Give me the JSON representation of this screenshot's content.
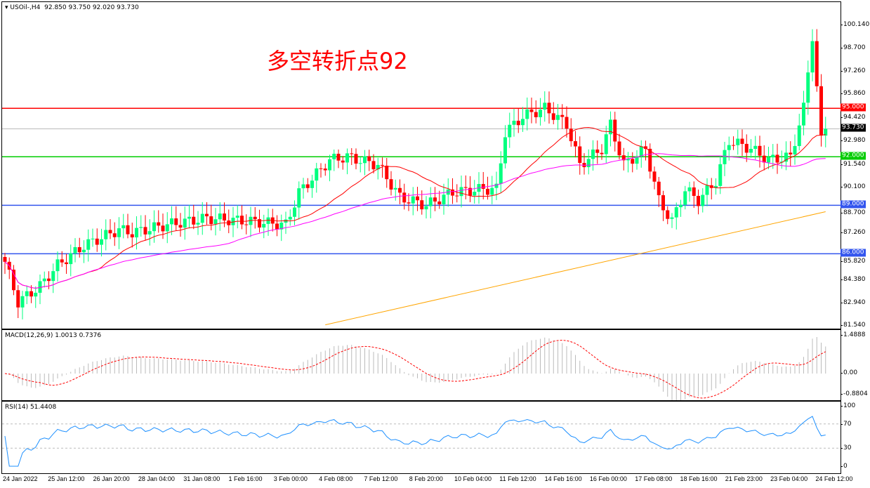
{
  "header": {
    "symbol": "USOil-,H4",
    "ohlc": "92.850 93.750 92.020 93.730"
  },
  "annotation": "多空转折点92",
  "colors": {
    "bull": "#00ff7f",
    "bear": "#ff0000",
    "ma_fast": "#ff0000",
    "ma_mid": "#ff00ff",
    "ma_slow": "#ffa500",
    "res": "#ff0000",
    "sup": "#00cc00",
    "level": "#3355ee"
  },
  "price_axis": {
    "min": 81.54,
    "max": 100.14,
    "ticks": [
      "100.140",
      "98.700",
      "97.260",
      "95.860",
      "94.420",
      "92.980",
      "91.540",
      "90.100",
      "88.700",
      "87.260",
      "85.820",
      "84.380",
      "82.940",
      "81.540"
    ]
  },
  "levels": [
    {
      "value": 95.0,
      "label": "95.000",
      "kind": "res"
    },
    {
      "value": 92.0,
      "label": "92.000",
      "kind": "sup"
    },
    {
      "value": 89.0,
      "label": "89.000",
      "kind": "level"
    },
    {
      "value": 86.0,
      "label": "86.000",
      "kind": "level"
    }
  ],
  "current_price": {
    "value": 93.73,
    "label": "93.730"
  },
  "close_waypoints": [
    [
      0,
      85.5
    ],
    [
      3,
      83
    ],
    [
      8,
      84
    ],
    [
      12,
      85.3
    ],
    [
      18,
      86.5
    ],
    [
      26,
      87.5
    ],
    [
      29,
      87.3
    ],
    [
      37,
      87.8
    ],
    [
      46,
      88.2
    ],
    [
      56,
      88
    ],
    [
      64,
      87.8
    ],
    [
      67,
      89.8
    ],
    [
      74,
      91.8
    ],
    [
      78,
      92
    ],
    [
      85,
      91.5
    ],
    [
      90,
      89.5
    ],
    [
      96,
      89
    ],
    [
      102,
      89.8
    ],
    [
      109,
      90
    ],
    [
      112,
      90
    ],
    [
      114,
      93.5
    ],
    [
      118,
      94.5
    ],
    [
      123,
      95
    ],
    [
      128,
      94
    ],
    [
      131,
      91.5
    ],
    [
      136,
      92.5
    ],
    [
      138,
      94
    ],
    [
      141,
      91.5
    ],
    [
      146,
      92.5
    ],
    [
      149,
      89.3
    ],
    [
      152,
      88
    ],
    [
      155,
      90
    ],
    [
      158,
      89.3
    ],
    [
      162,
      90.5
    ],
    [
      165,
      93
    ],
    [
      170,
      92.5
    ],
    [
      174,
      91.8
    ],
    [
      179,
      92
    ],
    [
      182,
      95
    ],
    [
      184,
      99.5
    ],
    [
      186,
      93
    ],
    [
      187,
      93.73
    ]
  ],
  "ma_slow": {
    "start": 81.6,
    "end": 88.6,
    "start_index": 73
  },
  "macd": {
    "label": "MACD(12,26,9) 1.0013 0.7376",
    "max": 1.4888,
    "min": -0.8804,
    "ticks": [
      "1.4888",
      "0.00",
      "-0.8804"
    ]
  },
  "rsi": {
    "label": "RSI(14) 51.4408",
    "ticks": [
      "100",
      "70",
      "30",
      "0"
    ]
  },
  "time_labels": [
    "24 Jan 2022",
    "25 Jan 12:00",
    "26 Jan 20:00",
    "28 Jan 04:00",
    "31 Jan 08:00",
    "1 Feb 16:00",
    "3 Feb 00:00",
    "4 Feb 08:00",
    "7 Feb 12:00",
    "8 Feb 20:00",
    "10 Feb 04:00",
    "11 Feb 12:00",
    "14 Feb 16:00",
    "16 Feb 00:00",
    "17 Feb 08:00",
    "18 Feb 16:00",
    "21 Feb 23:00",
    "23 Feb 04:00",
    "24 Feb 12:00"
  ]
}
